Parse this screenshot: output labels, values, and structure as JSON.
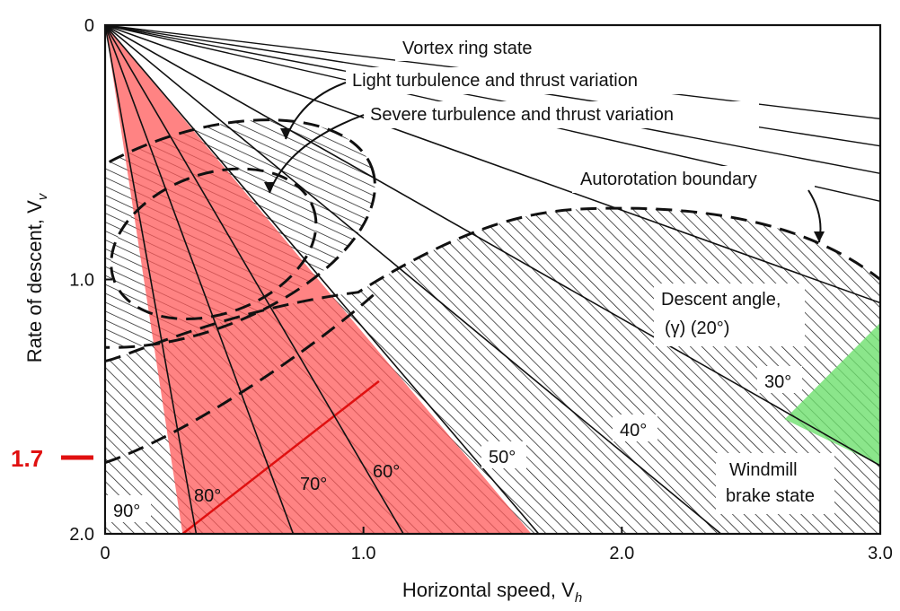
{
  "chart_data": {
    "type": "diagram",
    "xlabel": "Horizontal speed, V",
    "xlabel_sub": "h",
    "ylabel": "Rate of descent, V",
    "ylabel_sub": "v",
    "xlim": [
      0,
      3.0
    ],
    "ylim": [
      2.0,
      0
    ],
    "x_ticks": [
      {
        "value": 0,
        "label": "0"
      },
      {
        "value": 1.0,
        "label": "1.0"
      },
      {
        "value": 2.0,
        "label": "2.0"
      },
      {
        "value": 3.0,
        "label": "3.0"
      }
    ],
    "y_ticks": [
      {
        "value": 0,
        "label": "0"
      },
      {
        "value": 1.0,
        "label": "1.0"
      },
      {
        "value": 2.0,
        "label": "2.0"
      }
    ],
    "marker": {
      "value": 1.7,
      "label": "1.7",
      "color": "#e01010"
    },
    "descent_angles_deg": [
      20,
      30,
      40,
      50,
      60,
      70,
      80,
      90
    ],
    "angle_labels": [
      {
        "angle": 20,
        "text": "Descent angle,",
        "text2": "(γ)  (20°)"
      },
      {
        "angle": 30,
        "text": "30°"
      },
      {
        "angle": 40,
        "text": "40°"
      },
      {
        "angle": 50,
        "text": "50°"
      },
      {
        "angle": 60,
        "text": "60°"
      },
      {
        "angle": 70,
        "text": "70°"
      },
      {
        "angle": 80,
        "text": "80°"
      },
      {
        "angle": 90,
        "text": "90°"
      }
    ],
    "annotations": {
      "vortex": "Vortex ring state",
      "light": "Light turbulence and thrust variation",
      "severe": "Severe turbulence and thrust variation",
      "autorotation": "Autorotation boundary",
      "windmill1": "Windmill",
      "windmill2": "brake state"
    },
    "colors": {
      "red_region": "#ff5a5a",
      "green_region": "#6ee06e",
      "ink": "#111111"
    }
  }
}
